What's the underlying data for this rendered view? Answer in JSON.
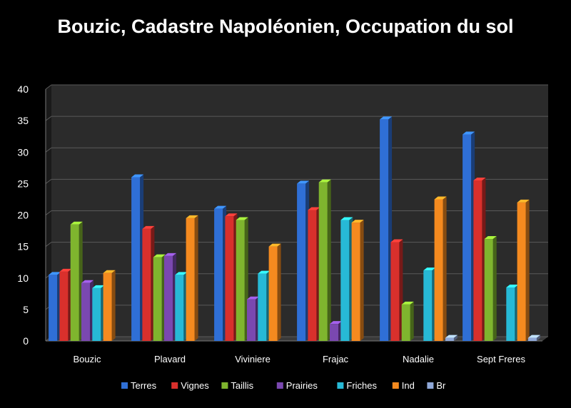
{
  "chart_data": {
    "type": "bar",
    "title": "Bouzic, Cadastre Napoléonien, Occupation du sol",
    "categories": [
      "Bouzic",
      "Plavard",
      "Viviniere",
      "Frajac",
      "Nadalie",
      "Sept Freres"
    ],
    "ylim": [
      0,
      40
    ],
    "yticks": [
      "0",
      "5",
      "10",
      "15",
      "20",
      "25",
      "30",
      "35",
      "40"
    ],
    "grid": true,
    "legend_position": "bottom",
    "series": [
      {
        "name": "Terres",
        "color": "#2f6fd6",
        "values": [
          10.5,
          26,
          21,
          25,
          35.2,
          32.8
        ]
      },
      {
        "name": "Vignes",
        "color": "#d9302c",
        "values": [
          11,
          17.8,
          19.8,
          20.8,
          15.7,
          25.5
        ]
      },
      {
        "name": "Taillis",
        "color": "#7fb52e",
        "values": [
          18.5,
          13.3,
          19.2,
          25.2,
          5.8,
          16.2
        ]
      },
      {
        "name": "Prairies",
        "color": "#7a48b0",
        "values": [
          9.2,
          13.5,
          6.6,
          2.7,
          0,
          0
        ]
      },
      {
        "name": "Friches",
        "color": "#27b9d6",
        "values": [
          8.4,
          10.5,
          10.7,
          19.2,
          11.2,
          8.5
        ]
      },
      {
        "name": "Ind",
        "color": "#f58a1f",
        "values": [
          10.8,
          19.5,
          15,
          18.8,
          22.5,
          22
        ]
      },
      {
        "name": "Br",
        "color": "#8fa8d8",
        "values": [
          0,
          0,
          0,
          0,
          0.5,
          0.5
        ]
      }
    ]
  }
}
